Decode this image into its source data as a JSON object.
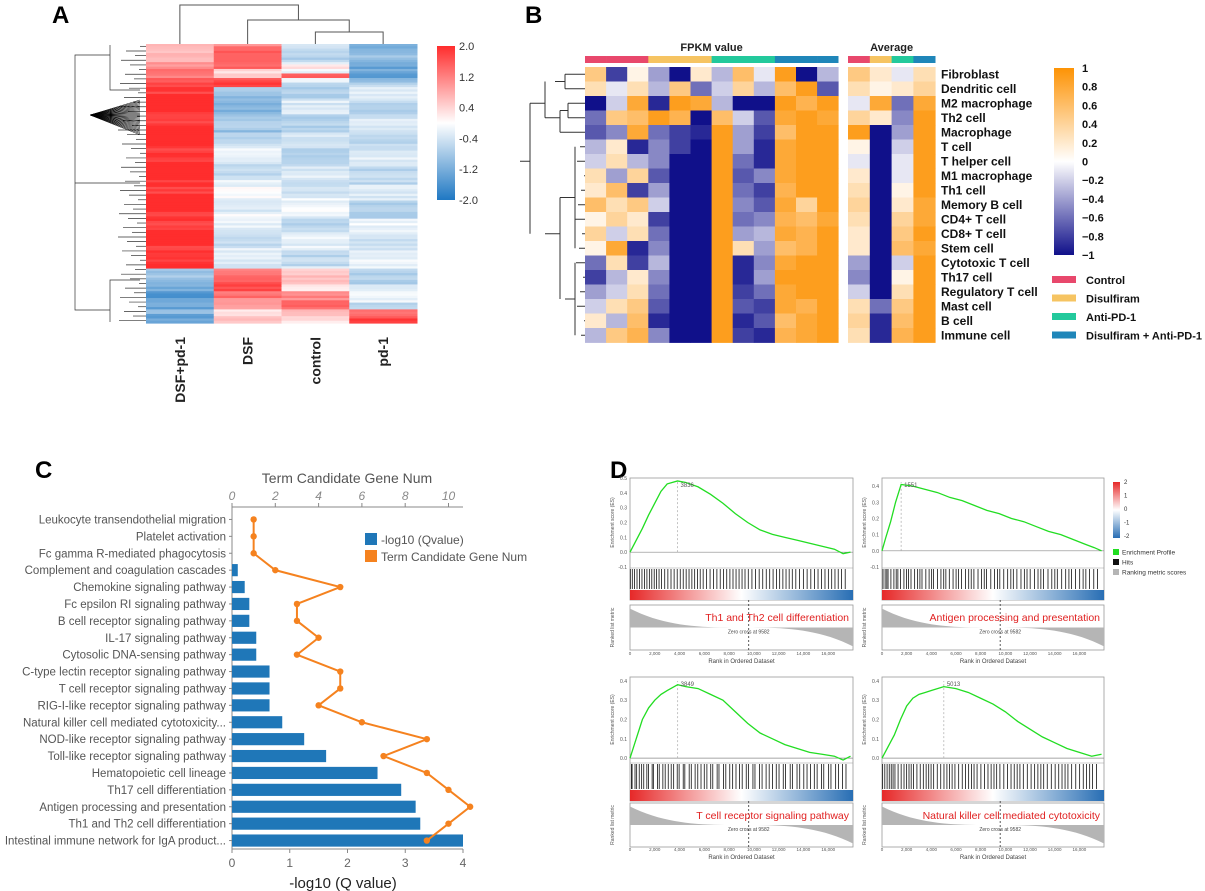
{
  "panels": {
    "a": "A",
    "b": "B",
    "c": "C",
    "d": "D"
  },
  "chart_data": [
    {
      "id": "A",
      "type": "heatmap",
      "columns": [
        "DSF+pd-1",
        "DSF",
        "control",
        "pd-1"
      ],
      "row_blocks": [
        {
          "rows": 8,
          "values": [
            0.8,
            1.3,
            -0.5,
            -1.1
          ]
        },
        {
          "rows": 3,
          "values": [
            0.9,
            1.6,
            0.1,
            -1.4
          ]
        },
        {
          "rows": 2,
          "values": [
            1.2,
            0.5,
            -0.3,
            -1.0
          ]
        },
        {
          "rows": 2,
          "values": [
            1.0,
            0.6,
            1.5,
            -1.3
          ]
        },
        {
          "rows": 4,
          "values": [
            1.8,
            1.6,
            -0.3,
            -0.8
          ]
        },
        {
          "rows": 20,
          "values": [
            2.0,
            -0.9,
            -0.5,
            -0.5
          ]
        },
        {
          "rows": 24,
          "values": [
            2.0,
            -0.4,
            -0.5,
            -0.4
          ]
        },
        {
          "rows": 14,
          "values": [
            2.0,
            -0.2,
            -0.3,
            -0.5
          ]
        },
        {
          "rows": 22,
          "values": [
            2.0,
            -0.4,
            -0.4,
            -0.3
          ]
        },
        {
          "rows": 10,
          "values": [
            -1.0,
            1.5,
            0.4,
            -0.5
          ]
        },
        {
          "rows": 8,
          "values": [
            -1.5,
            1.2,
            1.3,
            -0.4
          ]
        },
        {
          "rows": 6,
          "values": [
            -1.2,
            0.4,
            0.5,
            1.6
          ]
        }
      ],
      "legend_ticks": [
        "2.0",
        "1.2",
        "0.4",
        "-0.4",
        "-1.2",
        "-2.0"
      ],
      "vmin": -2,
      "vmax": 2
    },
    {
      "id": "B",
      "type": "heatmap",
      "title_left": "FPKM value",
      "title_right": "Average",
      "rows": [
        "Fibroblast",
        "Dendritic cell",
        "M2 macrophage",
        "Th2 cell",
        "Macrophage",
        "T cell",
        "T helper cell",
        "M1 macrophage",
        "Th1 cell",
        "Memory B cell",
        "CD4+ T cell",
        "CD8+ T cell",
        "Stem cell",
        "Cytotoxic T cell",
        "Th17 cell",
        "Regulatory T cell",
        "Mast cell",
        "B cell",
        "Immune cell"
      ],
      "group_sequence": [
        0,
        0,
        0,
        1,
        1,
        1,
        2,
        2,
        2,
        3,
        3,
        3
      ],
      "groups": [
        {
          "name": "Control",
          "color": "#e8486c"
        },
        {
          "name": "Disulfiram",
          "color": "#f6c462"
        },
        {
          "name": "Anti-PD-1",
          "color": "#23c99c"
        },
        {
          "name": "Disulfiram + Anti-PD-1",
          "color": "#1f86b9"
        }
      ],
      "values": [
        [
          0.5,
          -0.8,
          0.1,
          -0.4,
          -1,
          0.2,
          -0.3,
          0.6,
          -0.1,
          0.9,
          -1,
          -0.3
        ],
        [
          0.3,
          -0.1,
          0.3,
          -0.3,
          0.5,
          -0.6,
          -0.2,
          0.4,
          -0.3,
          0.6,
          0.9,
          -0.7
        ],
        [
          -1,
          -0.2,
          0.8,
          -0.9,
          0.9,
          0.8,
          -0.3,
          -1,
          -1,
          0.9,
          0.7,
          0.9
        ],
        [
          -0.6,
          0.5,
          0.6,
          0.9,
          0.7,
          -1,
          0.6,
          -0.2,
          -0.7,
          0.8,
          0.9,
          0.8
        ],
        [
          -0.7,
          -0.5,
          0.8,
          -0.6,
          -0.8,
          -0.9,
          0.9,
          -0.4,
          -0.8,
          0.6,
          0.9,
          0.9
        ],
        [
          -0.3,
          0.2,
          -0.9,
          -0.5,
          -0.8,
          -1,
          0.9,
          -0.4,
          -0.9,
          0.8,
          0.9,
          0.9
        ],
        [
          -0.2,
          0.3,
          -0.3,
          -0.5,
          -1,
          -1,
          0.9,
          -0.6,
          -0.9,
          0.8,
          0.9,
          0.9
        ],
        [
          0.3,
          -0.4,
          0.4,
          -0.7,
          -1,
          -1,
          0.9,
          -0.7,
          -0.5,
          0.8,
          0.9,
          0.9
        ],
        [
          0.2,
          0.6,
          -0.8,
          -0.4,
          -1,
          -1,
          0.9,
          -0.6,
          -0.8,
          0.7,
          0.9,
          0.9
        ],
        [
          0.6,
          0.3,
          0.5,
          -0.2,
          -1,
          -1,
          0.9,
          -0.5,
          -0.7,
          0.8,
          0.4,
          0.9
        ],
        [
          0.1,
          0.4,
          0.2,
          -0.8,
          -1,
          -1,
          0.9,
          -0.6,
          -0.5,
          0.7,
          0.6,
          0.8
        ],
        [
          0.4,
          -0.2,
          0.3,
          -0.6,
          -1,
          -1,
          0.9,
          -0.4,
          -0.3,
          0.8,
          0.7,
          0.9
        ],
        [
          0.1,
          0.8,
          -0.9,
          -0.5,
          -1,
          -1,
          0.9,
          0.3,
          -0.4,
          0.6,
          0.7,
          0.9
        ],
        [
          -0.6,
          0.3,
          -0.8,
          -0.3,
          -1,
          -1,
          0.9,
          -0.9,
          -0.5,
          0.8,
          0.9,
          0.9
        ],
        [
          -0.8,
          -0.3,
          0.2,
          -0.5,
          -1,
          -1,
          0.9,
          -0.9,
          -0.4,
          0.9,
          0.9,
          0.9
        ],
        [
          -0.4,
          -0.2,
          0.3,
          -0.6,
          -1,
          -1,
          0.9,
          -0.8,
          -0.6,
          0.8,
          0.9,
          0.9
        ],
        [
          -0.2,
          0.3,
          0.5,
          -0.7,
          -1,
          -1,
          0.9,
          -0.7,
          -0.8,
          0.8,
          0.7,
          0.9
        ],
        [
          0.2,
          -0.3,
          0.6,
          -0.9,
          -1,
          -1,
          0.9,
          -0.9,
          -0.7,
          0.6,
          0.8,
          0.9
        ],
        [
          -0.3,
          0.5,
          0.7,
          -0.5,
          -1,
          -1,
          0.9,
          -0.8,
          -0.9,
          0.7,
          0.8,
          0.9
        ]
      ],
      "average": [
        [
          0.5,
          0.2,
          -0.1,
          0.3
        ],
        [
          0.3,
          0.1,
          0.2,
          0.4
        ],
        [
          -0.1,
          0.8,
          -0.6,
          0.8
        ],
        [
          0.4,
          0.2,
          -0.5,
          0.9
        ],
        [
          0.9,
          -1,
          -0.4,
          0.9
        ],
        [
          0.1,
          -1,
          -0.2,
          0.9
        ],
        [
          -0.1,
          -1,
          -0.1,
          0.9
        ],
        [
          0.2,
          -1,
          -0.1,
          0.9
        ],
        [
          0.3,
          -1,
          0.1,
          0.9
        ],
        [
          0.4,
          -1,
          0.2,
          0.8
        ],
        [
          0.3,
          -1,
          0.4,
          0.8
        ],
        [
          0.2,
          -1,
          0.5,
          0.9
        ],
        [
          0.2,
          -1,
          0.6,
          0.8
        ],
        [
          -0.4,
          -1,
          -0.2,
          0.9
        ],
        [
          -0.5,
          -1,
          0.1,
          0.9
        ],
        [
          -0.2,
          -1,
          0.3,
          0.9
        ],
        [
          0.3,
          -0.6,
          0.5,
          0.9
        ],
        [
          0.4,
          -0.9,
          0.6,
          0.9
        ],
        [
          0.3,
          -0.9,
          0.7,
          0.9
        ]
      ],
      "colorbar_ticks": [
        "1",
        "0.8",
        "0.6",
        "0.4",
        "0.2",
        "0",
        "−0.2",
        "−0.4",
        "−0.6",
        "−0.8",
        "−1"
      ],
      "vmin": -1,
      "vmax": 1
    },
    {
      "id": "C",
      "type": "bar",
      "top_axis_title": "Term Candidate Gene Num",
      "top_ticks": [
        "0",
        "2",
        "4",
        "6",
        "8",
        "10"
      ],
      "xlabel": "-log10  (Q value)",
      "bottom_ticks": [
        "0",
        "1",
        "2",
        "3",
        "4"
      ],
      "xlim": [
        0,
        4
      ],
      "top_xlim": [
        0,
        10.67
      ],
      "legend": [
        "-log10  (Qvalue)",
        "Term Candidate Gene Num"
      ],
      "categories": [
        "Leukocyte transendothelial migration",
        "Platelet activation",
        "Fc gamma R-mediated phagocytosis",
        "Complement and coagulation cascades",
        "Chemokine signaling pathway",
        "Fc epsilon RI signaling pathway",
        "B cell receptor signaling pathway",
        "IL-17 signaling pathway",
        "Cytosolic DNA-sensing pathway",
        "C-type lectin receptor signaling pathway",
        "T cell receptor signaling pathway",
        "RIG-I-like receptor signaling pathway",
        "Natural killer cell mediated cytotoxicity...",
        "NOD-like receptor signaling pathway",
        "Toll-like receptor signaling pathway",
        "Hematopoietic cell lineage",
        "Th17 cell differentiation",
        "Antigen processing and presentation",
        "Th1 and Th2 cell differentiation",
        "Intestinal immune network for IgA product..."
      ],
      "values": [
        0.0,
        0.0,
        0.0,
        0.1,
        0.22,
        0.3,
        0.3,
        0.42,
        0.42,
        0.65,
        0.65,
        0.65,
        0.87,
        1.25,
        1.63,
        2.52,
        2.93,
        3.18,
        3.26,
        4.0
      ],
      "line_values": [
        1,
        1,
        1,
        2,
        5,
        3,
        3,
        4,
        3,
        5,
        5,
        4,
        6,
        9,
        7,
        9,
        10,
        11,
        10,
        9
      ]
    },
    {
      "id": "D",
      "type": "line",
      "ylabel": "Enrichment score (ES)",
      "ylabel2": "Ranked list metric",
      "xlabel": "Rank in Ordered Dataset",
      "x_ticks": [
        "0",
        "2,000",
        "4,000",
        "6,000",
        "8,000",
        "10,000",
        "12,000",
        "14,000",
        "16,000"
      ],
      "zero_cross": "Zero cross at 9582",
      "legend": [
        "Enrichment Profile",
        "Hits",
        "Ranking metric scores"
      ],
      "colorbar_ticks": [
        "2",
        "1",
        "0",
        "-1",
        "-2"
      ],
      "x_max": 18000,
      "zero_x": 9582,
      "plots": [
        {
          "title": "Th1 and Th2 cell differentiation",
          "peak_label": "3836",
          "peak_x": 3836,
          "y_ticks": [
            "0.5",
            "0.4",
            "0.3",
            "0.2",
            "0.1",
            "0.0",
            "-0.1"
          ],
          "ylim": [
            -0.1,
            0.5
          ],
          "es": [
            [
              0,
              0.0
            ],
            [
              500,
              0.08
            ],
            [
              1000,
              0.16
            ],
            [
              1500,
              0.25
            ],
            [
              2000,
              0.33
            ],
            [
              2500,
              0.41
            ],
            [
              3000,
              0.46
            ],
            [
              3836,
              0.48
            ],
            [
              4500,
              0.47
            ],
            [
              5500,
              0.44
            ],
            [
              6500,
              0.39
            ],
            [
              7500,
              0.33
            ],
            [
              8500,
              0.26
            ],
            [
              9500,
              0.2
            ],
            [
              10500,
              0.15
            ],
            [
              11500,
              0.12
            ],
            [
              12500,
              0.1
            ],
            [
              13500,
              0.08
            ],
            [
              14500,
              0.06
            ],
            [
              15500,
              0.04
            ],
            [
              16500,
              0.02
            ],
            [
              17200,
              -0.01
            ],
            [
              17800,
              0.0
            ]
          ]
        },
        {
          "title": "Antigen processing and presentation",
          "peak_label": "1551",
          "peak_x": 1551,
          "y_ticks": [
            "0.4",
            "0.3",
            "0.2",
            "0.1",
            "0.0",
            "-0.1"
          ],
          "ylim": [
            -0.1,
            0.45
          ],
          "es": [
            [
              0,
              0.0
            ],
            [
              300,
              0.08
            ],
            [
              700,
              0.18
            ],
            [
              1100,
              0.3
            ],
            [
              1551,
              0.41
            ],
            [
              2500,
              0.4
            ],
            [
              3500,
              0.38
            ],
            [
              4500,
              0.36
            ],
            [
              5500,
              0.33
            ],
            [
              6500,
              0.31
            ],
            [
              7500,
              0.28
            ],
            [
              8500,
              0.25
            ],
            [
              9500,
              0.23
            ],
            [
              10500,
              0.2
            ],
            [
              11500,
              0.18
            ],
            [
              12500,
              0.15
            ],
            [
              13500,
              0.12
            ],
            [
              14500,
              0.1
            ],
            [
              15500,
              0.07
            ],
            [
              16500,
              0.04
            ],
            [
              17200,
              0.02
            ],
            [
              17800,
              0.0
            ]
          ]
        },
        {
          "title": "T cell receptor signaling pathway",
          "peak_label": "3849",
          "peak_x": 3849,
          "y_ticks": [
            "0.4",
            "0.3",
            "0.2",
            "0.1",
            "0.0"
          ],
          "ylim": [
            -0.02,
            0.42
          ],
          "es": [
            [
              0,
              0.0
            ],
            [
              500,
              0.1
            ],
            [
              1000,
              0.2
            ],
            [
              1500,
              0.26
            ],
            [
              2000,
              0.3
            ],
            [
              2500,
              0.33
            ],
            [
              3000,
              0.35
            ],
            [
              3849,
              0.38
            ],
            [
              4500,
              0.37
            ],
            [
              5500,
              0.36
            ],
            [
              6500,
              0.33
            ],
            [
              7500,
              0.3
            ],
            [
              8500,
              0.24
            ],
            [
              9500,
              0.18
            ],
            [
              10500,
              0.13
            ],
            [
              11500,
              0.1
            ],
            [
              12500,
              0.07
            ],
            [
              13500,
              0.05
            ],
            [
              14500,
              0.03
            ],
            [
              15500,
              0.02
            ],
            [
              16500,
              0.01
            ],
            [
              17200,
              -0.01
            ],
            [
              17800,
              0.01
            ]
          ]
        },
        {
          "title": "Natural killer cell mediated cytotoxicity",
          "peak_label": "5013",
          "peak_x": 5013,
          "y_ticks": [
            "0.4",
            "0.3",
            "0.2",
            "0.1",
            "0.0"
          ],
          "ylim": [
            -0.02,
            0.42
          ],
          "es": [
            [
              0,
              0.0
            ],
            [
              500,
              0.06
            ],
            [
              1000,
              0.12
            ],
            [
              1500,
              0.2
            ],
            [
              2000,
              0.27
            ],
            [
              2500,
              0.31
            ],
            [
              3000,
              0.33
            ],
            [
              3500,
              0.34
            ],
            [
              4000,
              0.35
            ],
            [
              5013,
              0.37
            ],
            [
              6000,
              0.36
            ],
            [
              7000,
              0.34
            ],
            [
              8000,
              0.31
            ],
            [
              9000,
              0.28
            ],
            [
              10000,
              0.24
            ],
            [
              11000,
              0.19
            ],
            [
              12000,
              0.15
            ],
            [
              13000,
              0.11
            ],
            [
              14000,
              0.08
            ],
            [
              15000,
              0.05
            ],
            [
              16000,
              0.03
            ],
            [
              17000,
              0.01
            ],
            [
              17800,
              0.02
            ]
          ]
        }
      ]
    }
  ]
}
